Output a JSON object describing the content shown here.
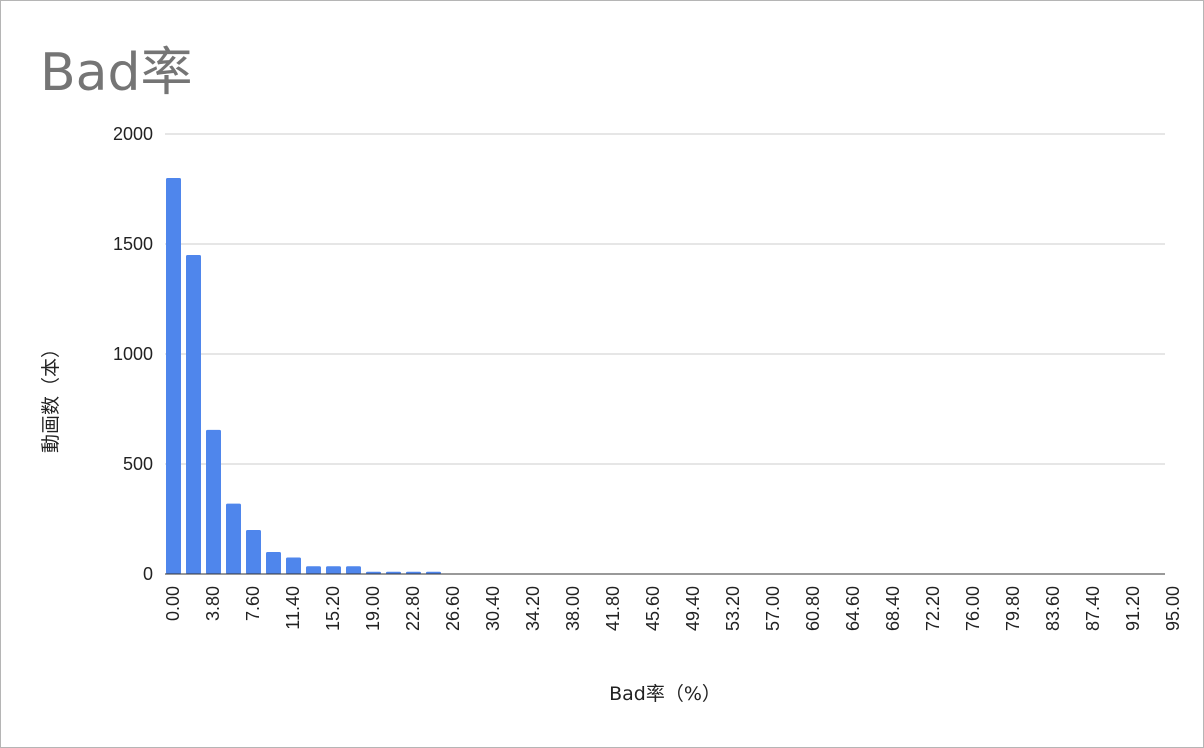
{
  "chart_data": {
    "type": "bar",
    "title": "Bad率",
    "xlabel": "Bad率（%）",
    "ylabel": "動画数（本）",
    "ylim": [
      0,
      2000
    ],
    "yticks": [
      "0",
      "500",
      "1000",
      "1500",
      "2000"
    ],
    "grid": true,
    "bar_color": "#4f86ec",
    "categories": [
      "0.00",
      "1.90",
      "3.80",
      "5.70",
      "7.60",
      "9.50",
      "11.40",
      "13.30",
      "15.20",
      "17.10",
      "19.00",
      "20.90",
      "22.80",
      "24.70",
      "26.60",
      "28.50",
      "30.40",
      "32.30",
      "34.20",
      "36.10",
      "38.00",
      "39.90",
      "41.80",
      "43.70",
      "45.60",
      "47.50",
      "49.40",
      "51.30",
      "53.20",
      "55.10",
      "57.00",
      "58.90",
      "60.80",
      "62.70",
      "64.60",
      "66.50",
      "68.40",
      "70.30",
      "72.20",
      "74.10",
      "76.00",
      "77.90",
      "79.80",
      "81.70",
      "83.60",
      "85.50",
      "87.40",
      "89.30",
      "91.20",
      "93.10",
      "95.00"
    ],
    "xtick_labels": [
      "0.00",
      "3.80",
      "7.60",
      "11.40",
      "15.20",
      "19.00",
      "22.80",
      "26.60",
      "30.40",
      "34.20",
      "38.00",
      "41.80",
      "45.60",
      "49.40",
      "53.20",
      "57.00",
      "60.80",
      "64.60",
      "68.40",
      "72.20",
      "76.00",
      "79.80",
      "83.60",
      "87.40",
      "91.20",
      "95.00"
    ],
    "values": [
      1800,
      1450,
      655,
      320,
      200,
      100,
      75,
      35,
      35,
      35,
      10,
      10,
      10,
      10,
      0,
      0,
      0,
      0,
      0,
      0,
      0,
      0,
      0,
      0,
      0,
      0,
      0,
      0,
      0,
      0,
      0,
      0,
      0,
      0,
      0,
      0,
      0,
      0,
      0,
      0,
      0,
      0,
      0,
      0,
      0,
      0,
      0,
      0,
      0,
      0,
      0
    ]
  }
}
